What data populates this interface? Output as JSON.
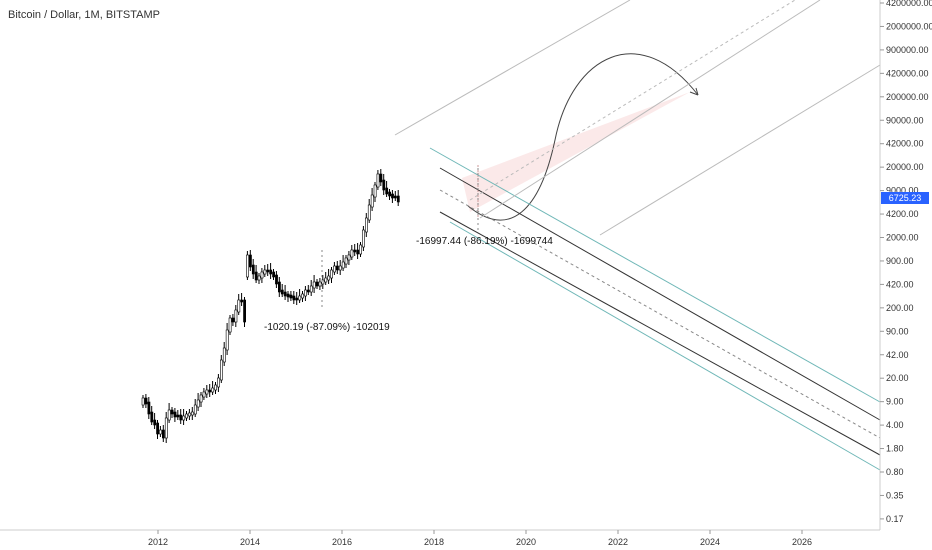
{
  "chart_data": {
    "type": "candlestick",
    "title": "Bitcoin / Dollar, 1M, BITSTAMP",
    "y_scale": "log",
    "grid": false,
    "y_ticks": [
      "4200000.00",
      "2000000.00",
      "900000.00",
      "420000.00",
      "200000.00",
      "90000.00",
      "42000.00",
      "20000.00",
      "9000.00",
      "4200.00",
      "2000.00",
      "900.00",
      "420.00",
      "200.00",
      "90.00",
      "42.00",
      "20.00",
      "9.00",
      "4.00",
      "1.80",
      "0.80",
      "0.35",
      "0.17"
    ],
    "x_ticks": [
      "2012",
      "2014",
      "2016",
      "2018",
      "2020",
      "2022",
      "2024",
      "2026"
    ],
    "last_price": "6725.23",
    "last_price_color": "#2962ff",
    "annotations": [
      "-1020.19 (-87.09%) -102019",
      "-16997.44 (-86.19%) -1699744"
    ],
    "colors": {
      "bull_body": "#ffffff",
      "bear_body": "#000000",
      "outer_channel": "#6fb7b7",
      "inner_channel": "#333333",
      "median_line": "#888888",
      "upper_fork": "#bbbbbb",
      "projection_fill": "#fbe9e9"
    }
  }
}
